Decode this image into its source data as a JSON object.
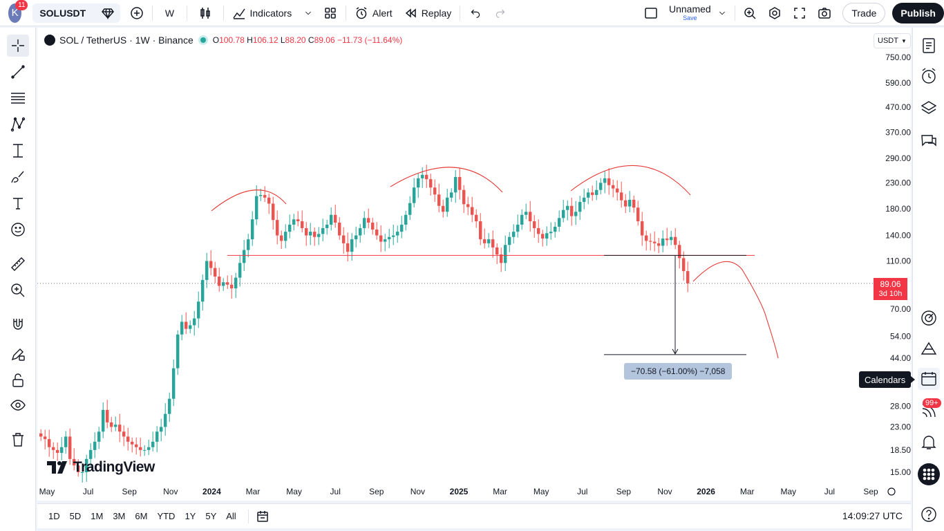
{
  "topbar": {
    "avatar_letter": "K",
    "notification_count": "11",
    "symbol": "SOLUSDT",
    "interval": "W",
    "indicators_label": "Indicators",
    "alert_label": "Alert",
    "replay_label": "Replay",
    "layout_name": "Unnamed",
    "layout_save": "Save",
    "trade_label": "Trade",
    "publish_label": "Publish"
  },
  "legend": {
    "title": "SOL / TetherUS · 1W · Binance",
    "open_label": "O",
    "open": "100.78",
    "high_label": "H",
    "high": "106.12",
    "low_label": "L",
    "low": "88.20",
    "close_label": "C",
    "close": "89.06",
    "change": "−11.73 (−11.64%)"
  },
  "currency": "USDT",
  "price_tag": {
    "price": "89.06",
    "countdown": "3d 10h"
  },
  "measure": {
    "label": "−70.58 (−61.00%) −7,058"
  },
  "tooltip": "Calendars",
  "alerts_badge": "99+",
  "brand": "TradingView",
  "bottombar": {
    "ranges": [
      "1D",
      "5D",
      "1M",
      "3M",
      "6M",
      "YTD",
      "1Y",
      "5Y",
      "All"
    ],
    "time": "14:09:27 UTC"
  },
  "chart_data": {
    "type": "candlestick",
    "symbol": "SOLUSDT",
    "exchange": "Binance",
    "interval": "1W",
    "y_scale": "log",
    "y_ticks": [
      750,
      590,
      470,
      370,
      290,
      230,
      180,
      140,
      110,
      70,
      54,
      44,
      28,
      23,
      18.5,
      15
    ],
    "y_tick_labels": [
      "750.00",
      "590.00",
      "470.00",
      "370.00",
      "290.00",
      "230.00",
      "180.00",
      "140.00",
      "110.00",
      "70.00",
      "54.00",
      "44.00",
      "28.00",
      "23.00",
      "18.50",
      "15.00"
    ],
    "x_ticks": [
      "May",
      "Jul",
      "Sep",
      "Nov",
      "2024",
      "Mar",
      "May",
      "Jul",
      "Sep",
      "Nov",
      "2025",
      "Mar",
      "May",
      "Jul",
      "Sep",
      "Nov",
      "2026",
      "Mar",
      "May",
      "Jul",
      "Sep"
    ],
    "last_price": 89.06,
    "annotations": {
      "neckline": 116,
      "measured_move_from": 116,
      "measured_move_to": 45.5,
      "measured_move_change": -70.58,
      "measured_move_change_pct": -61.0
    },
    "close_path": [
      21,
      20.5,
      19,
      18.5,
      18,
      19,
      21,
      17,
      16,
      15,
      15,
      17,
      18.5,
      20,
      22,
      27,
      24,
      23,
      23.5,
      22,
      21,
      20,
      19.5,
      19,
      18.5,
      18.5,
      19,
      20,
      22,
      23,
      26,
      30,
      40,
      55,
      62,
      58,
      60,
      64,
      75,
      92,
      110,
      103,
      95,
      87,
      90,
      88,
      85,
      94,
      108,
      122,
      135,
      163,
      203,
      205,
      200,
      189,
      162,
      140,
      133,
      145,
      155,
      163,
      160,
      150,
      140,
      145,
      138,
      142,
      150,
      155,
      170,
      158,
      140,
      130,
      120,
      135,
      140,
      150,
      165,
      158,
      148,
      140,
      132,
      135,
      138,
      140,
      145,
      155,
      170,
      190,
      220,
      240,
      248,
      238,
      220,
      206,
      185,
      175,
      200,
      210,
      243,
      215,
      188,
      183,
      170,
      160,
      135,
      130,
      135,
      125,
      117,
      108,
      128,
      138,
      145,
      155,
      170,
      175,
      160,
      150,
      142,
      136,
      143,
      145,
      152,
      165,
      178,
      185,
      168,
      175,
      192,
      200,
      210,
      205,
      215,
      230,
      240,
      225,
      218,
      210,
      195,
      184,
      196,
      182,
      160,
      140,
      133,
      132,
      130,
      127,
      136,
      134,
      138,
      128,
      113,
      100,
      89.06
    ]
  }
}
